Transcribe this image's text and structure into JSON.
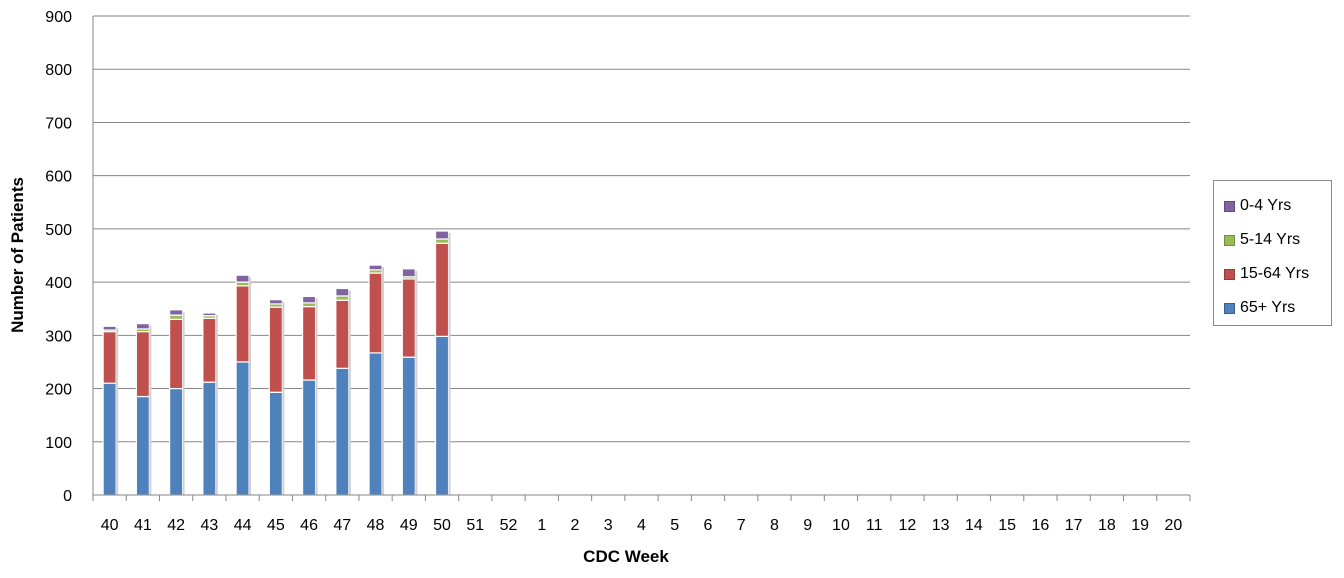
{
  "chart_data": {
    "type": "bar",
    "stacked": true,
    "title": "",
    "xlabel": "CDC Week",
    "ylabel": "Number of Patients",
    "ylim": [
      0,
      900
    ],
    "yticks": [
      0,
      100,
      200,
      300,
      400,
      500,
      600,
      700,
      800,
      900
    ],
    "grid": true,
    "legend_position": "right",
    "categories": [
      "40",
      "41",
      "42",
      "43",
      "44",
      "45",
      "46",
      "47",
      "48",
      "49",
      "50",
      "51",
      "52",
      "1",
      "2",
      "3",
      "4",
      "5",
      "6",
      "7",
      "8",
      "9",
      "10",
      "11",
      "12",
      "13",
      "14",
      "15",
      "16",
      "17",
      "18",
      "19",
      "20"
    ],
    "series": [
      {
        "name": "65+ Yrs",
        "color": "#4f81bd",
        "values": [
          210,
          185,
          200,
          212,
          250,
          193,
          216,
          238,
          267,
          259,
          298,
          null,
          null,
          null,
          null,
          null,
          null,
          null,
          null,
          null,
          null,
          null,
          null,
          null,
          null,
          null,
          null,
          null,
          null,
          null,
          null,
          null,
          null
        ]
      },
      {
        "name": "15-64 Yrs",
        "color": "#c0504d",
        "values": [
          97,
          122,
          130,
          120,
          143,
          160,
          138,
          128,
          150,
          147,
          175,
          null,
          null,
          null,
          null,
          null,
          null,
          null,
          null,
          null,
          null,
          null,
          null,
          null,
          null,
          null,
          null,
          null,
          null,
          null,
          null,
          null,
          null
        ]
      },
      {
        "name": "5-14 Yrs",
        "color": "#9bbb59",
        "values": [
          3,
          5,
          8,
          5,
          7,
          6,
          7,
          8,
          6,
          4,
          8,
          null,
          null,
          null,
          null,
          null,
          null,
          null,
          null,
          null,
          null,
          null,
          null,
          null,
          null,
          null,
          null,
          null,
          null,
          null,
          null,
          null,
          null
        ]
      },
      {
        "name": "0-4 Yrs",
        "color": "#8064a2",
        "values": [
          7,
          10,
          10,
          5,
          13,
          8,
          12,
          14,
          9,
          15,
          15,
          null,
          null,
          null,
          null,
          null,
          null,
          null,
          null,
          null,
          null,
          null,
          null,
          null,
          null,
          null,
          null,
          null,
          null,
          null,
          null,
          null,
          null
        ]
      }
    ]
  },
  "legend": {
    "items": [
      {
        "label": "0-4 Yrs",
        "color": "#8064a2"
      },
      {
        "label": "5-14 Yrs",
        "color": "#9bbb59"
      },
      {
        "label": "15-64 Yrs",
        "color": "#c0504d"
      },
      {
        "label": "65+ Yrs",
        "color": "#4f81bd"
      }
    ]
  }
}
